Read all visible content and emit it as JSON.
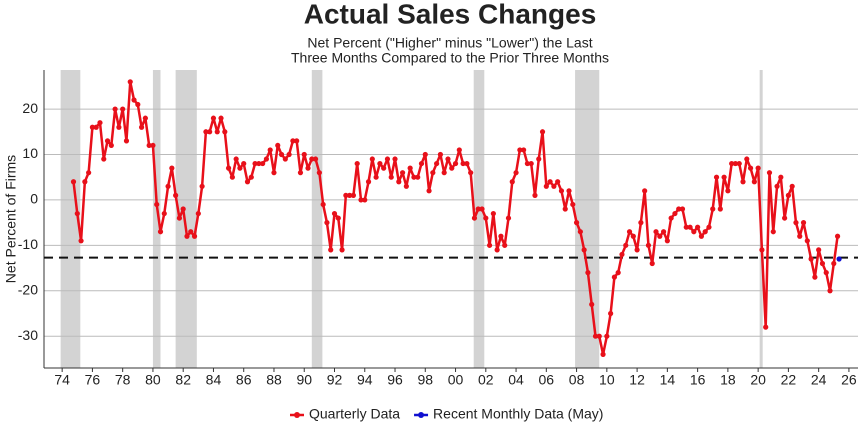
{
  "chart_data": {
    "type": "line",
    "title": "Actual Sales Changes",
    "subtitle": [
      "Net Percent (\"Higher\" minus \"Lower\") the Last",
      "Three Months Compared to the Prior Three Months"
    ],
    "y_label": "Net Percent of Firms",
    "xlim": [
      1972.8,
      2026.6
    ],
    "ylim": [
      -37,
      28.6
    ],
    "xticks": [
      {
        "value": 1974,
        "label": "74"
      },
      {
        "value": 1976,
        "label": "76"
      },
      {
        "value": 1978,
        "label": "78"
      },
      {
        "value": 1980,
        "label": "80"
      },
      {
        "value": 1982,
        "label": "82"
      },
      {
        "value": 1984,
        "label": "84"
      },
      {
        "value": 1986,
        "label": "86"
      },
      {
        "value": 1988,
        "label": "88"
      },
      {
        "value": 1990,
        "label": "90"
      },
      {
        "value": 1992,
        "label": "92"
      },
      {
        "value": 1994,
        "label": "94"
      },
      {
        "value": 1996,
        "label": "96"
      },
      {
        "value": 1998,
        "label": "98"
      },
      {
        "value": 2000,
        "label": "00"
      },
      {
        "value": 2002,
        "label": "02"
      },
      {
        "value": 2004,
        "label": "04"
      },
      {
        "value": 2006,
        "label": "06"
      },
      {
        "value": 2008,
        "label": "08"
      },
      {
        "value": 2010,
        "label": "10"
      },
      {
        "value": 2012,
        "label": "12"
      },
      {
        "value": 2014,
        "label": "14"
      },
      {
        "value": 2016,
        "label": "16"
      },
      {
        "value": 2018,
        "label": "18"
      },
      {
        "value": 2020,
        "label": "20"
      },
      {
        "value": 2022,
        "label": "22"
      },
      {
        "value": 2024,
        "label": "24"
      },
      {
        "value": 2026,
        "label": "26"
      }
    ],
    "yticks": [
      -30,
      -20,
      -10,
      0,
      10,
      20
    ],
    "grid": true,
    "reference_line": -12.7,
    "shaded_periods": [
      [
        1973.9,
        1975.2
      ],
      [
        1980.0,
        1980.5
      ],
      [
        1981.5,
        1982.9
      ],
      [
        1990.5,
        1991.2
      ],
      [
        2001.2,
        2001.9
      ],
      [
        2007.9,
        2009.5
      ],
      [
        2020.1,
        2020.3
      ]
    ],
    "legend_position": "bottom",
    "series": [
      {
        "name": "Quarterly Data",
        "color": "#e8101a",
        "x": [
          1974.75,
          1975,
          1975.25,
          1975.5,
          1975.75,
          1976,
          1976.25,
          1976.5,
          1976.75,
          1977,
          1977.25,
          1977.5,
          1977.75,
          1978,
          1978.25,
          1978.5,
          1978.75,
          1979,
          1979.25,
          1979.5,
          1979.75,
          1980,
          1980.25,
          1980.5,
          1980.75,
          1981,
          1981.25,
          1981.5,
          1981.75,
          1982,
          1982.25,
          1982.5,
          1982.75,
          1983,
          1983.25,
          1983.5,
          1983.75,
          1984,
          1984.25,
          1984.5,
          1984.75,
          1985,
          1985.25,
          1985.5,
          1985.75,
          1986,
          1986.25,
          1986.5,
          1986.75,
          1987,
          1987.25,
          1987.5,
          1987.75,
          1988,
          1988.25,
          1988.5,
          1988.75,
          1989,
          1989.25,
          1989.5,
          1989.75,
          1990,
          1990.25,
          1990.5,
          1990.75,
          1991,
          1991.25,
          1991.5,
          1991.75,
          1992,
          1992.25,
          1992.5,
          1992.75,
          1993,
          1993.25,
          1993.5,
          1993.75,
          1994,
          1994.25,
          1994.5,
          1994.75,
          1995,
          1995.25,
          1995.5,
          1995.75,
          1996,
          1996.25,
          1996.5,
          1996.75,
          1997,
          1997.25,
          1997.5,
          1997.75,
          1998,
          1998.25,
          1998.5,
          1998.75,
          1999,
          1999.25,
          1999.5,
          1999.75,
          2000,
          2000.25,
          2000.5,
          2000.75,
          2001,
          2001.25,
          2001.5,
          2001.75,
          2002,
          2002.25,
          2002.5,
          2002.75,
          2003,
          2003.25,
          2003.5,
          2003.75,
          2004,
          2004.25,
          2004.5,
          2004.75,
          2005,
          2005.25,
          2005.5,
          2005.75,
          2006,
          2006.25,
          2006.5,
          2006.75,
          2007,
          2007.25,
          2007.5,
          2007.75,
          2008,
          2008.25,
          2008.5,
          2008.75,
          2009,
          2009.25,
          2009.5,
          2009.75,
          2010,
          2010.25,
          2010.5,
          2010.75,
          2011,
          2011.25,
          2011.5,
          2011.75,
          2012,
          2012.25,
          2012.5,
          2012.75,
          2013,
          2013.25,
          2013.5,
          2013.75,
          2014,
          2014.25,
          2014.5,
          2014.75,
          2015,
          2015.25,
          2015.5,
          2015.75,
          2016,
          2016.25,
          2016.5,
          2016.75,
          2017,
          2017.25,
          2017.5,
          2017.75,
          2018,
          2018.25,
          2018.5,
          2018.75,
          2019,
          2019.25,
          2019.5,
          2019.75,
          2020,
          2020.25,
          2020.5,
          2020.75,
          2021,
          2021.25,
          2021.5,
          2021.75,
          2022,
          2022.25,
          2022.5,
          2022.75,
          2023,
          2023.25,
          2023.5,
          2023.75,
          2024,
          2024.25,
          2024.5,
          2024.75,
          2025,
          2025.25
        ],
        "values": [
          4,
          -3,
          -9,
          4,
          6,
          16,
          16,
          17,
          9,
          13,
          12,
          20,
          16,
          20,
          13,
          26,
          22,
          21,
          16,
          18,
          12,
          12,
          -1,
          -7,
          -3,
          3,
          7,
          1,
          -4,
          -2,
          -8,
          -7,
          -8,
          -3,
          3,
          15,
          15,
          18,
          15,
          18,
          15,
          7,
          5,
          9,
          7,
          8,
          4,
          5,
          8,
          8,
          8,
          9,
          11,
          6,
          12,
          10,
          9,
          10,
          13,
          13,
          6,
          10,
          7,
          9,
          9,
          6,
          -1,
          -5,
          -11,
          -3,
          -4,
          -11,
          1,
          1,
          1,
          8,
          0,
          0,
          4,
          9,
          5,
          8,
          7,
          9,
          5,
          9,
          4,
          6,
          3,
          7,
          5,
          5,
          8,
          10,
          2,
          6,
          8,
          10,
          6,
          9,
          7,
          8,
          11,
          8,
          8,
          6,
          -4,
          -2,
          -2,
          -4,
          -10,
          -3,
          -11,
          -8,
          -10,
          -4,
          4,
          6,
          11,
          11,
          8,
          8,
          1,
          9,
          15,
          3,
          4,
          3,
          4,
          2,
          -2,
          2,
          -1,
          -5,
          -7,
          -11,
          -16,
          -23,
          -30,
          -30,
          -34,
          -30,
          -25,
          -17,
          -16,
          -12,
          -10,
          -7,
          -8,
          -11,
          -5,
          2,
          -10,
          -14,
          -7,
          -8,
          -7,
          -9,
          -4,
          -3,
          -2,
          -2,
          -6,
          -6,
          -7,
          -6,
          -8,
          -7,
          -6,
          -2,
          5,
          -2,
          5,
          2,
          8,
          8,
          8,
          4,
          9,
          7,
          4,
          7,
          -11,
          -28,
          6,
          -7,
          3,
          5,
          -4,
          1,
          3,
          -5,
          -8,
          -5,
          -9,
          -13,
          -17,
          -11,
          -14,
          -16,
          -20,
          -14,
          -8
        ]
      },
      {
        "name": "Recent Monthly Data (May)",
        "color": "#1010d0",
        "x": [
          2025.35
        ],
        "values": [
          -13
        ]
      }
    ]
  }
}
